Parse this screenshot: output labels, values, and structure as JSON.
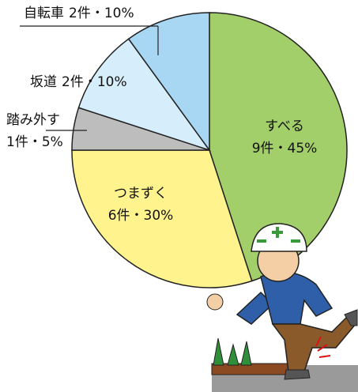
{
  "chart_data": {
    "type": "pie",
    "categories": [
      "すべる",
      "つまずく",
      "踏み外す",
      "坂道",
      "自転車"
    ],
    "values": [
      45,
      30,
      5,
      10,
      10
    ],
    "value_labels": [
      "9件・45%",
      "6件・30%",
      "1件・5%",
      "2件・10%",
      "2件・10%"
    ],
    "colors": [
      "#a3cf6b",
      "#fff38d",
      "#bdbdbd",
      "#d6edfb",
      "#a8d7f4"
    ]
  }
}
